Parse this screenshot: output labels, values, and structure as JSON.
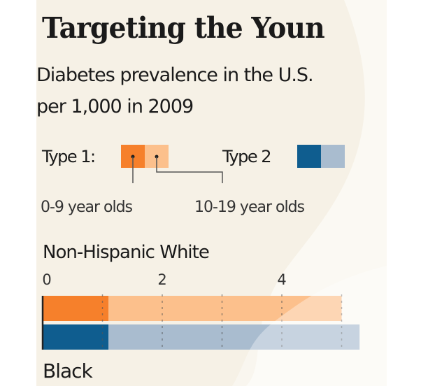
{
  "chart_data": {
    "type": "bar",
    "orientation": "horizontal",
    "title": "Targeting the Youn",
    "subtitle": [
      "Diabetes prevalence in the U.S.",
      "per 1,000 in 2009"
    ],
    "xlim": [
      0,
      5.5
    ],
    "x_ticks": [
      0,
      2,
      4
    ],
    "x_tick_labels": [
      "0",
      "2",
      "4"
    ],
    "gridlines": [
      1,
      2,
      3,
      4,
      5
    ],
    "grid": true,
    "legend": {
      "placement": "top",
      "type1_label": "Type 1:",
      "type2_label": "Type 2",
      "age_0_9_label": "0-9 year olds",
      "age_10_19_label": "10-19 year olds",
      "colors": {
        "type1_0_9": "#f6802b",
        "type1_10_19": "#fcc08c",
        "type2_0_9": "#0f5d8f",
        "type2_10_19": "#a9bccf"
      }
    },
    "groups": [
      {
        "name": "Non-Hispanic White",
        "series": [
          {
            "name": "Type 1",
            "values": {
              "0-9 year olds": 1.1,
              "10-19 year olds": 5.0
            }
          },
          {
            "name": "Type 2",
            "values": {
              "0-9 year olds": 1.1,
              "10-19 year olds": 5.3
            }
          }
        ]
      },
      {
        "name": "Black",
        "series": []
      }
    ]
  }
}
